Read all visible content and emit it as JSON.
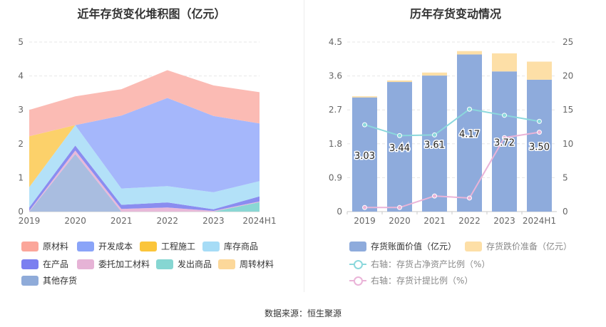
{
  "left_title": "近年存货变化堆积图（亿元）",
  "right_title": "历年存货变动情况",
  "source": "数据来源：恒生聚源",
  "chart_data": [
    {
      "type": "area",
      "title": "近年存货变化堆积图（亿元）",
      "categories": [
        "2019",
        "2020",
        "2021",
        "2022",
        "2023",
        "2024H1"
      ],
      "ylim": [
        0,
        5
      ],
      "yticks": [
        "0",
        "1",
        "2",
        "3",
        "4",
        "5"
      ],
      "grid": true,
      "legend_position": "bottom",
      "series": [
        {
          "name": "其他存货",
          "color": "#a9bde0",
          "values": [
            0.0,
            1.7,
            0.0,
            0.0,
            0.0,
            0.0
          ]
        },
        {
          "name": "发出商品",
          "color": "#8ad7d4",
          "values": [
            0.0,
            0.0,
            0.0,
            0.0,
            0.0,
            0.28
          ]
        },
        {
          "name": "委托加工材料",
          "color": "#e8b9d9",
          "values": [
            0.02,
            0.1,
            0.08,
            0.12,
            0.02,
            0.02
          ]
        },
        {
          "name": "在产品",
          "color": "#8a8df0",
          "values": [
            0.1,
            0.15,
            0.12,
            0.15,
            0.05,
            0.15
          ]
        },
        {
          "name": "库存商品",
          "color": "#b3e1f8",
          "values": [
            0.6,
            0.6,
            0.48,
            0.48,
            0.5,
            0.45
          ]
        },
        {
          "name": "工程施工",
          "color": "#fcd16a",
          "values": [
            1.5,
            0.0,
            0.0,
            0.0,
            0.0,
            0.0
          ]
        },
        {
          "name": "周转材料",
          "color": "#fde3a8",
          "values": [
            0.0,
            0.0,
            0.0,
            0.0,
            0.0,
            0.0
          ]
        },
        {
          "name": "开发成本",
          "color": "#a5b7fb",
          "values": [
            0.0,
            0.0,
            2.15,
            2.6,
            2.25,
            1.7
          ]
        },
        {
          "name": "原材料",
          "color": "#fbbbb4",
          "values": [
            0.78,
            0.85,
            0.78,
            0.82,
            0.9,
            0.92
          ]
        }
      ],
      "legend": [
        {
          "name": "原材料",
          "color": "#fba69a"
        },
        {
          "name": "开发成本",
          "color": "#8aa4f8"
        },
        {
          "name": "工程施工",
          "color": "#fbc53a"
        },
        {
          "name": "库存商品",
          "color": "#a6dcf6"
        },
        {
          "name": "在产品",
          "color": "#7b7ff0"
        },
        {
          "name": "委托加工材料",
          "color": "#e6b3d6"
        },
        {
          "name": "发出商品",
          "color": "#86d6d2"
        },
        {
          "name": "周转材料",
          "color": "#fcd89a"
        },
        {
          "name": "其他存货",
          "color": "#8fabd9"
        }
      ]
    },
    {
      "type": "bar",
      "title": "历年存货变动情况",
      "categories": [
        "2019",
        "2020",
        "2021",
        "2022",
        "2023",
        "2024H1"
      ],
      "ylim": [
        0,
        4.5
      ],
      "yticks": [
        "0",
        "0.9",
        "1.8",
        "2.7",
        "3.6",
        "4.5"
      ],
      "y2lim": [
        0,
        25
      ],
      "y2ticks": [
        "0",
        "5",
        "10",
        "15",
        "20",
        "25"
      ],
      "grid": true,
      "legend_position": "bottom",
      "series": [
        {
          "name": "存货账面价值（亿元）",
          "color": "#8eabdc",
          "values": [
            3.03,
            3.44,
            3.61,
            4.17,
            3.72,
            3.5
          ],
          "labels": [
            "3.03",
            "3.44",
            "3.61",
            "4.17",
            "3.72",
            "3.50"
          ]
        },
        {
          "name": "存货跌价准备（亿元）",
          "color": "#fddfa7",
          "values": [
            0.03,
            0.04,
            0.08,
            0.09,
            0.48,
            0.48
          ]
        },
        {
          "name": "右轴：存货占净资产比例（%）",
          "color": "#8bd8dc",
          "axis": "right",
          "values": [
            12.8,
            11.2,
            11.3,
            15.1,
            14.2,
            13.3
          ]
        },
        {
          "name": "右轴：存货计提比例（%）",
          "color": "#eab4d8",
          "axis": "right",
          "values": [
            0.6,
            0.6,
            2.3,
            2.0,
            10.9,
            11.7
          ]
        }
      ]
    }
  ]
}
